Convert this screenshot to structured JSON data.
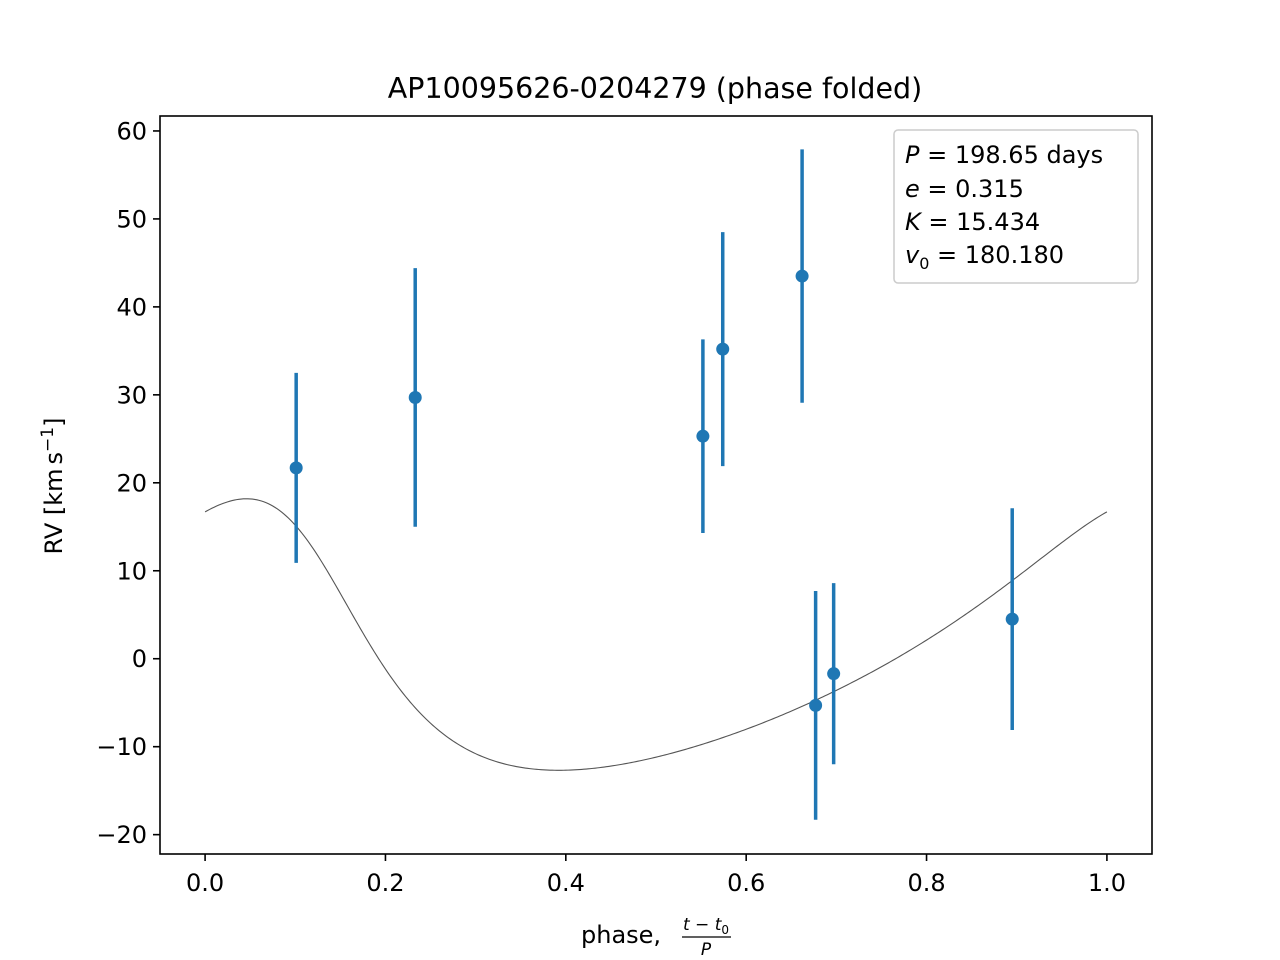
{
  "chart_data": {
    "type": "scatter",
    "title": "AP10095626-0204279 (phase folded)",
    "xlabel": "phase, (t−t0)/P",
    "ylabel": "RV [km s−1]",
    "xlim": [
      -0.05,
      1.05
    ],
    "ylim": [
      -22.2,
      61.7
    ],
    "x_ticks": [
      0.0,
      0.2,
      0.4,
      0.6,
      0.8,
      1.0
    ],
    "x_tick_labels": [
      "0.0",
      "0.2",
      "0.4",
      "0.6",
      "0.8",
      "1.0"
    ],
    "y_ticks": [
      -20,
      -10,
      0,
      10,
      20,
      30,
      40,
      50,
      60
    ],
    "y_tick_labels": [
      "−20",
      "−10",
      "0",
      "10",
      "20",
      "30",
      "40",
      "50",
      "60"
    ],
    "grid": false,
    "legend_position": "top-right",
    "legend": {
      "P": "198.65",
      "P_unit": "days",
      "e": "0.315",
      "K": "15.434",
      "v0": "180.180"
    },
    "observations": {
      "color": "#1f77b4",
      "points": [
        {
          "x": 0.101,
          "y": 21.7,
          "err": 10.8
        },
        {
          "x": 0.233,
          "y": 29.7,
          "err": 14.7
        },
        {
          "x": 0.552,
          "y": 25.3,
          "err": 11.0
        },
        {
          "x": 0.574,
          "y": 35.2,
          "err": 13.3
        },
        {
          "x": 0.662,
          "y": 43.5,
          "err": 14.4
        },
        {
          "x": 0.677,
          "y": -5.3,
          "err": 13.0
        },
        {
          "x": 0.697,
          "y": -1.7,
          "err": 10.3
        },
        {
          "x": 0.895,
          "y": 4.5,
          "err": 12.6
        }
      ]
    },
    "model_curve": {
      "color": "#555555",
      "e": 0.315,
      "K": 15.434,
      "omega_rad": 0.86,
      "phase_of_periastron": 0.1178,
      "y_offset": -0.42
    }
  }
}
